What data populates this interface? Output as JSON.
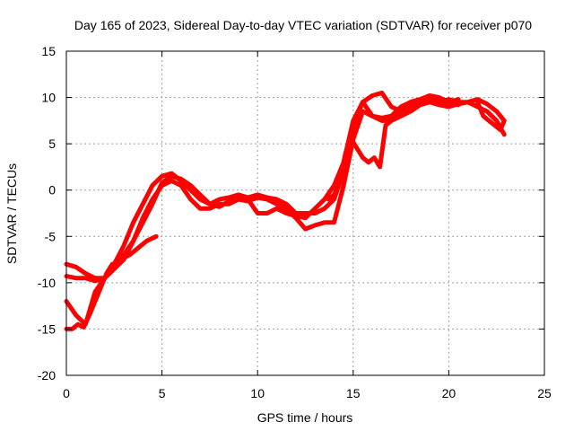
{
  "chart_data": {
    "type": "line",
    "title": "Day 165 of 2023, Sidereal Day-to-day VTEC variation (SDTVAR) for receiver p070",
    "xlabel": "GPS time / hours",
    "ylabel": "SDTVAR / TECUs",
    "xlim": [
      0,
      25
    ],
    "ylim": [
      -20,
      15
    ],
    "xticks": [
      0,
      5,
      10,
      15,
      20,
      25
    ],
    "yticks": [
      -20,
      -15,
      -10,
      -5,
      0,
      5,
      10,
      15
    ],
    "grid": true,
    "legend": "none",
    "color": "#ff0000",
    "series": [
      {
        "x": [
          0.0,
          0.5,
          1.0,
          1.5,
          2.0,
          2.5,
          3.0,
          3.5,
          4.0,
          4.5,
          5.0,
          5.5,
          6.0,
          6.5,
          7.0,
          7.5,
          8.0,
          8.5,
          9.0,
          9.5,
          10.0,
          10.5,
          11.0,
          11.5,
          12.0,
          12.5,
          13.0,
          13.5,
          14.0,
          14.5,
          15.0,
          15.5,
          16.0,
          16.5,
          17.0,
          17.5,
          18.0,
          18.5,
          19.0,
          19.5,
          20.0,
          20.5,
          21.0,
          21.5,
          22.0,
          22.5,
          22.9
        ],
        "y": [
          -8.0,
          -8.3,
          -9.0,
          -9.5,
          -9.5,
          -8.0,
          -6.0,
          -3.5,
          -1.5,
          0.5,
          1.5,
          1.8,
          1.0,
          0.0,
          -1.0,
          -1.5,
          -1.0,
          -0.8,
          -0.5,
          -0.8,
          -0.5,
          -0.8,
          -1.0,
          -1.5,
          -2.5,
          -2.5,
          -2.5,
          -2.0,
          -1.0,
          2.0,
          7.0,
          9.5,
          10.2,
          10.5,
          9.0,
          8.5,
          9.5,
          9.8,
          10.0,
          9.5,
          9.8,
          9.5,
          9.5,
          9.8,
          9.3,
          8.5,
          7.5
        ]
      },
      {
        "x": [
          0.0,
          0.5,
          1.0,
          1.5,
          2.0,
          2.5,
          3.0,
          3.5,
          4.0,
          4.5,
          5.0,
          5.5,
          6.0,
          6.5,
          7.0,
          7.5,
          8.0,
          8.5,
          9.0,
          9.5,
          10.0,
          10.5,
          11.0,
          11.5,
          12.0,
          12.5,
          13.0,
          13.5,
          14.0,
          14.5,
          15.0,
          15.5,
          16.0,
          16.5,
          17.0,
          17.5,
          18.0,
          18.5,
          19.0,
          19.5,
          20.0,
          20.5,
          21.0,
          21.5,
          22.0,
          22.5,
          22.9
        ],
        "y": [
          -9.3,
          -9.5,
          -9.5,
          -9.8,
          -9.5,
          -8.5,
          -7.5,
          -5.5,
          -3.5,
          -1.5,
          0.8,
          1.5,
          1.2,
          0.5,
          -0.5,
          -1.5,
          -1.8,
          -1.2,
          -1.0,
          -1.2,
          -0.8,
          -1.0,
          -1.5,
          -2.0,
          -3.0,
          -4.2,
          -3.8,
          -3.5,
          -3.5,
          0.5,
          5.5,
          8.5,
          8.0,
          7.5,
          7.5,
          8.0,
          8.5,
          9.2,
          9.5,
          9.2,
          9.0,
          9.3,
          9.5,
          9.0,
          8.5,
          7.5,
          6.0
        ]
      },
      {
        "x": [
          0.0,
          0.5,
          1.0,
          1.5,
          2.0,
          2.5,
          3.0,
          3.5,
          4.0,
          4.5,
          5.0,
          5.5,
          6.0,
          6.5,
          7.0,
          7.5,
          8.0,
          8.5,
          9.0,
          9.5,
          10.0,
          10.5,
          11.0,
          11.5,
          12.0,
          12.5,
          13.0,
          13.5,
          14.0,
          14.5,
          15.0,
          15.5,
          16.0,
          16.5,
          17.0,
          17.5,
          18.0,
          18.5,
          19.0,
          19.5,
          20.0,
          20.5
        ],
        "y": [
          -12.0,
          -13.5,
          -14.5,
          -11.0,
          -9.5,
          -8.5,
          -7.0,
          -5.5,
          -3.0,
          -1.0,
          0.5,
          1.0,
          0.5,
          -1.0,
          -2.0,
          -2.0,
          -1.5,
          -1.5,
          -1.0,
          -1.0,
          -2.5,
          -2.5,
          -2.0,
          -2.5,
          -2.8,
          -3.0,
          -2.0,
          -1.0,
          0.5,
          3.0,
          7.5,
          9.5,
          8.0,
          7.8,
          8.0,
          9.0,
          9.5,
          9.8,
          10.2,
          10.0,
          9.5,
          9.8
        ]
      },
      {
        "x": [
          0.0,
          0.3,
          0.6,
          0.9,
          1.2,
          1.5,
          1.8,
          2.1,
          2.4,
          2.7,
          3.0,
          3.3,
          3.6,
          3.9,
          4.2,
          4.5,
          4.7
        ],
        "y": [
          -15.0,
          -15.0,
          -14.5,
          -14.8,
          -13.5,
          -12.0,
          -10.5,
          -9.0,
          -8.0,
          -7.8,
          -7.3,
          -7.0,
          -6.5,
          -6.0,
          -5.5,
          -5.2,
          -5.0
        ]
      },
      {
        "x": [
          13.7,
          14.0,
          14.3,
          14.6,
          14.9,
          15.2,
          15.5,
          15.8,
          16.1,
          16.4,
          16.7,
          17.0,
          17.3,
          17.6,
          18.0,
          18.5,
          19.0,
          19.5,
          20.0,
          20.5
        ],
        "y": [
          -1.0,
          -0.5,
          1.0,
          4.0,
          5.5,
          4.5,
          3.5,
          3.0,
          3.5,
          2.5,
          7.0,
          7.5,
          8.0,
          8.5,
          9.0,
          9.5,
          9.8,
          9.5,
          9.5,
          9.2
        ]
      },
      {
        "x": [
          21.5,
          21.8,
          22.1,
          22.4,
          22.7,
          22.9
        ],
        "y": [
          9.5,
          8.0,
          7.5,
          7.0,
          6.5,
          7.5
        ]
      }
    ]
  }
}
